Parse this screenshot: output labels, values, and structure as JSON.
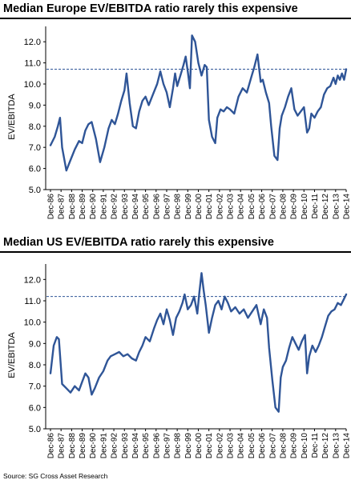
{
  "source": "Source: SG Cross Asset Research",
  "colors": {
    "series": "#2f5597",
    "reference": "#2f5597",
    "axis": "#000000"
  },
  "chart_data": [
    {
      "type": "line",
      "title": "Median Europe EV/EBITDA ratio rarely this expensive",
      "ylabel": "EV/EBITDA",
      "xlabel": "",
      "ylim": [
        5.0,
        12.5
      ],
      "yticks": [
        "5.0",
        "6.0",
        "7.0",
        "8.0",
        "9.0",
        "10.0",
        "11.0",
        "12.0"
      ],
      "xticks": [
        "Dec-86",
        "Dec-87",
        "Dec-88",
        "Dec-89",
        "Dec-90",
        "Dec-91",
        "Dec-92",
        "Dec-93",
        "Dec-94",
        "Dec-95",
        "Dec-96",
        "Dec-97",
        "Dec-98",
        "Dec-99",
        "Dec-00",
        "Dec-01",
        "Dec-02",
        "Dec-03",
        "Dec-04",
        "Dec-05",
        "Dec-06",
        "Dec-07",
        "Dec-08",
        "Dec-09",
        "Dec-10",
        "Dec-11",
        "Dec-12",
        "Dec-13",
        "Dec-14"
      ],
      "grid": false,
      "reference_line": {
        "value": 10.7,
        "style": "dashed"
      },
      "series": [
        {
          "x": [
            1986.9,
            1987.3,
            1987.6,
            1987.8,
            1988.0,
            1988.4,
            1988.8,
            1989.2,
            1989.6,
            1989.9,
            1990.2,
            1990.5,
            1990.8,
            1991.2,
            1991.6,
            1992.0,
            1992.4,
            1992.7,
            1993.0,
            1993.3,
            1993.6,
            1993.9,
            1994.1,
            1994.4,
            1994.7,
            1995.0,
            1995.3,
            1995.6,
            1995.9,
            1996.2,
            1996.6,
            1997.0,
            1997.3,
            1997.6,
            1997.9,
            1998.2,
            1998.5,
            1998.7,
            1998.9,
            1999.2,
            1999.5,
            1999.7,
            1999.9,
            2000.1,
            2000.3,
            2000.6,
            2000.9,
            2001.2,
            2001.5,
            2001.7,
            2001.9,
            2002.2,
            2002.5,
            2002.7,
            2003.0,
            2003.3,
            2003.6,
            2003.9,
            2004.3,
            2004.7,
            2005.1,
            2005.5,
            2005.9,
            2006.2,
            2006.5,
            2006.8,
            2007.0,
            2007.3,
            2007.6,
            2007.8,
            2008.1,
            2008.4,
            2008.6,
            2008.8,
            2009.1,
            2009.4,
            2009.7,
            2010.0,
            2010.3,
            2010.6,
            2010.9,
            2011.2,
            2011.4,
            2011.6,
            2011.9,
            2012.2,
            2012.5,
            2012.8,
            2013.1,
            2013.4,
            2013.7,
            2013.9,
            2014.1,
            2014.3,
            2014.5,
            2014.7,
            2014.9
          ],
          "y": [
            7.1,
            7.5,
            8.0,
            8.4,
            7.0,
            5.9,
            6.4,
            6.9,
            7.3,
            7.2,
            7.8,
            8.1,
            8.2,
            7.4,
            6.3,
            7.0,
            7.9,
            8.3,
            8.1,
            8.6,
            9.2,
            9.7,
            10.5,
            9.1,
            8.0,
            7.9,
            8.7,
            9.2,
            9.4,
            9.0,
            9.5,
            10.0,
            10.6,
            10.0,
            9.6,
            8.9,
            9.8,
            10.5,
            9.9,
            10.4,
            10.9,
            11.3,
            10.6,
            9.8,
            12.3,
            12.0,
            11.0,
            10.4,
            10.9,
            10.8,
            8.3,
            7.5,
            7.2,
            8.4,
            8.8,
            8.7,
            8.9,
            8.8,
            8.6,
            9.4,
            9.8,
            9.6,
            10.3,
            10.8,
            11.4,
            10.1,
            10.2,
            9.6,
            9.1,
            8.0,
            6.6,
            6.4,
            7.9,
            8.5,
            8.9,
            9.4,
            9.8,
            8.8,
            8.5,
            8.7,
            8.9,
            7.7,
            7.9,
            8.6,
            8.4,
            8.7,
            8.9,
            9.5,
            9.8,
            9.9,
            10.3,
            10.0,
            10.4,
            10.2,
            10.5,
            10.2,
            10.7
          ]
        }
      ]
    },
    {
      "type": "line",
      "title": "Median US EV/EBITDA ratio rarely this expensive",
      "ylabel": "EV/EBITDA",
      "xlabel": "",
      "ylim": [
        5.0,
        12.5
      ],
      "yticks": [
        "5.0",
        "6.0",
        "7.0",
        "8.0",
        "9.0",
        "10.0",
        "11.0",
        "12.0"
      ],
      "xticks": [
        "Dec-86",
        "Dec-87",
        "Dec-88",
        "Dec-89",
        "Dec-90",
        "Dec-91",
        "Dec-92",
        "Dec-93",
        "Dec-94",
        "Dec-95",
        "Dec-96",
        "Dec-97",
        "Dec-98",
        "Dec-99",
        "Dec-00",
        "Dec-01",
        "Dec-02",
        "Dec-03",
        "Dec-04",
        "Dec-05",
        "Dec-06",
        "Dec-07",
        "Dec-08",
        "Dec-09",
        "Dec-10",
        "Dec-11",
        "Dec-12",
        "Dec-13",
        "Dec-14"
      ],
      "grid": false,
      "reference_line": {
        "value": 11.2,
        "style": "dashed"
      },
      "series": [
        {
          "x": [
            1986.9,
            1987.2,
            1987.5,
            1987.7,
            1988.0,
            1988.4,
            1988.8,
            1989.2,
            1989.6,
            1989.9,
            1990.2,
            1990.5,
            1990.8,
            1991.1,
            1991.5,
            1991.9,
            1992.3,
            1992.6,
            1993.0,
            1993.4,
            1993.8,
            1994.2,
            1994.6,
            1995.0,
            1995.3,
            1995.6,
            1995.9,
            1996.3,
            1996.7,
            1997.0,
            1997.3,
            1997.6,
            1997.9,
            1998.2,
            1998.5,
            1998.8,
            1999.1,
            1999.4,
            1999.6,
            1999.9,
            2000.2,
            2000.5,
            2000.8,
            2001.0,
            2001.2,
            2001.4,
            2001.6,
            2001.9,
            2002.2,
            2002.5,
            2002.8,
            2003.1,
            2003.4,
            2003.7,
            2004.0,
            2004.4,
            2004.8,
            2005.2,
            2005.6,
            2006.0,
            2006.4,
            2006.8,
            2007.1,
            2007.4,
            2007.6,
            2007.9,
            2008.2,
            2008.5,
            2008.7,
            2008.9,
            2009.2,
            2009.5,
            2009.8,
            2010.1,
            2010.4,
            2010.7,
            2011.0,
            2011.2,
            2011.4,
            2011.7,
            2012.0,
            2012.3,
            2012.6,
            2012.9,
            2013.2,
            2013.5,
            2013.8,
            2014.1,
            2014.4,
            2014.7,
            2014.9
          ],
          "y": [
            7.6,
            8.9,
            9.3,
            9.2,
            7.1,
            6.9,
            6.7,
            7.0,
            6.8,
            7.2,
            7.6,
            7.4,
            6.6,
            6.9,
            7.4,
            7.7,
            8.2,
            8.4,
            8.5,
            8.6,
            8.4,
            8.5,
            8.3,
            8.2,
            8.6,
            8.9,
            9.3,
            9.1,
            9.7,
            10.1,
            10.4,
            9.9,
            10.6,
            10.1,
            9.4,
            10.2,
            10.5,
            10.9,
            11.3,
            10.6,
            10.8,
            11.2,
            10.4,
            11.4,
            12.3,
            11.5,
            10.8,
            9.5,
            10.2,
            10.8,
            11.0,
            10.6,
            11.2,
            10.9,
            10.5,
            10.7,
            10.4,
            10.6,
            10.2,
            10.5,
            10.8,
            9.9,
            10.6,
            10.2,
            8.8,
            7.3,
            6.0,
            5.8,
            7.4,
            7.9,
            8.2,
            8.8,
            9.3,
            9.0,
            8.7,
            9.1,
            9.4,
            7.6,
            8.4,
            8.9,
            8.6,
            8.9,
            9.3,
            9.8,
            10.3,
            10.5,
            10.6,
            10.9,
            10.8,
            11.1,
            11.3
          ]
        }
      ]
    }
  ]
}
